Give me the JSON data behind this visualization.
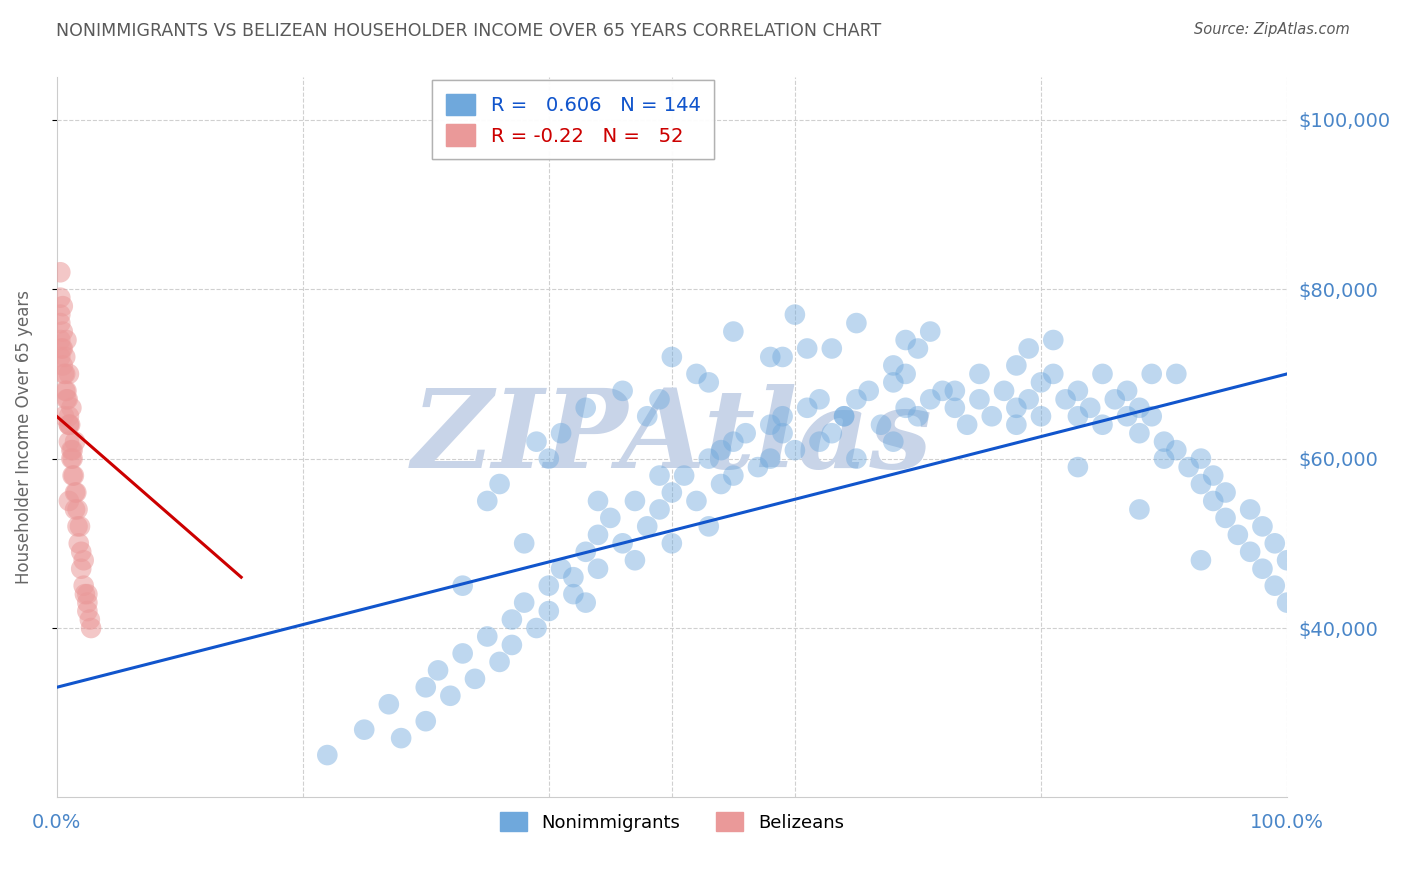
{
  "title": "NONIMMIGRANTS VS BELIZEAN HOUSEHOLDER INCOME OVER 65 YEARS CORRELATION CHART",
  "source": "Source: ZipAtlas.com",
  "ylabel": "Householder Income Over 65 years",
  "xlim": [
    0.0,
    1.0
  ],
  "ylim": [
    20000,
    105000
  ],
  "yticks": [
    40000,
    60000,
    80000,
    100000
  ],
  "ytick_labels": [
    "$40,000",
    "$60,000",
    "$80,000",
    "$100,000"
  ],
  "xtick_labels": [
    "0.0%",
    "100.0%"
  ],
  "blue_R": 0.606,
  "blue_N": 144,
  "pink_R": -0.22,
  "pink_N": 52,
  "blue_color": "#6fa8dc",
  "pink_color": "#ea9999",
  "blue_line_color": "#1155cc",
  "pink_line_color": "#cc0000",
  "axis_color": "#4a86c8",
  "title_color": "#595959",
  "source_color": "#595959",
  "watermark_color": "#c8d4e8",
  "background_color": "#ffffff",
  "grid_color": "#d0d0d0",
  "blue_trend": [
    0.0,
    33000,
    1.0,
    70000
  ],
  "pink_trend": [
    0.0,
    65000,
    0.15,
    46000
  ],
  "blue_scatter_x": [
    0.22,
    0.25,
    0.27,
    0.28,
    0.3,
    0.3,
    0.31,
    0.32,
    0.33,
    0.34,
    0.35,
    0.36,
    0.37,
    0.37,
    0.38,
    0.39,
    0.4,
    0.4,
    0.41,
    0.42,
    0.42,
    0.43,
    0.43,
    0.44,
    0.44,
    0.45,
    0.46,
    0.47,
    0.47,
    0.48,
    0.49,
    0.5,
    0.5,
    0.51,
    0.52,
    0.53,
    0.53,
    0.54,
    0.55,
    0.55,
    0.56,
    0.57,
    0.58,
    0.58,
    0.59,
    0.6,
    0.61,
    0.62,
    0.62,
    0.63,
    0.64,
    0.65,
    0.65,
    0.66,
    0.67,
    0.68,
    0.68,
    0.69,
    0.7,
    0.71,
    0.72,
    0.73,
    0.74,
    0.75,
    0.75,
    0.76,
    0.77,
    0.78,
    0.78,
    0.79,
    0.8,
    0.8,
    0.81,
    0.82,
    0.83,
    0.83,
    0.84,
    0.85,
    0.85,
    0.86,
    0.87,
    0.87,
    0.88,
    0.88,
    0.89,
    0.9,
    0.9,
    0.91,
    0.92,
    0.93,
    0.93,
    0.94,
    0.94,
    0.95,
    0.95,
    0.96,
    0.97,
    0.97,
    0.98,
    0.98,
    0.99,
    0.99,
    1.0,
    1.0,
    0.36,
    0.41,
    0.46,
    0.5,
    0.55,
    0.6,
    0.65,
    0.7,
    0.35,
    0.4,
    0.48,
    0.53,
    0.58,
    0.63,
    0.68,
    0.73,
    0.78,
    0.83,
    0.88,
    0.93,
    0.43,
    0.52,
    0.61,
    0.71,
    0.81,
    0.91,
    0.39,
    0.49,
    0.59,
    0.69,
    0.79,
    0.89,
    0.33,
    0.38,
    0.44,
    0.49,
    0.54,
    0.59,
    0.64,
    0.69
  ],
  "blue_scatter_y": [
    25000,
    28000,
    31000,
    27000,
    33000,
    29000,
    35000,
    32000,
    37000,
    34000,
    39000,
    36000,
    41000,
    38000,
    43000,
    40000,
    45000,
    42000,
    47000,
    44000,
    46000,
    49000,
    43000,
    51000,
    47000,
    53000,
    50000,
    55000,
    48000,
    52000,
    54000,
    56000,
    50000,
    58000,
    55000,
    60000,
    52000,
    57000,
    62000,
    58000,
    63000,
    59000,
    64000,
    60000,
    65000,
    61000,
    66000,
    62000,
    67000,
    63000,
    65000,
    67000,
    60000,
    68000,
    64000,
    69000,
    62000,
    70000,
    65000,
    67000,
    68000,
    66000,
    64000,
    67000,
    70000,
    65000,
    68000,
    66000,
    71000,
    67000,
    69000,
    65000,
    70000,
    67000,
    65000,
    68000,
    66000,
    70000,
    64000,
    67000,
    65000,
    68000,
    63000,
    66000,
    65000,
    62000,
    60000,
    61000,
    59000,
    57000,
    60000,
    55000,
    58000,
    53000,
    56000,
    51000,
    54000,
    49000,
    52000,
    47000,
    50000,
    45000,
    48000,
    43000,
    57000,
    63000,
    68000,
    72000,
    75000,
    77000,
    76000,
    73000,
    55000,
    60000,
    65000,
    69000,
    72000,
    73000,
    71000,
    68000,
    64000,
    59000,
    54000,
    48000,
    66000,
    70000,
    73000,
    75000,
    74000,
    70000,
    62000,
    67000,
    72000,
    74000,
    73000,
    70000,
    45000,
    50000,
    55000,
    58000,
    61000,
    63000,
    65000,
    66000
  ],
  "pink_scatter_x": [
    0.003,
    0.005,
    0.007,
    0.008,
    0.01,
    0.01,
    0.012,
    0.013,
    0.015,
    0.015,
    0.017,
    0.018,
    0.02,
    0.02,
    0.022,
    0.023,
    0.025,
    0.025,
    0.027,
    0.028,
    0.003,
    0.005,
    0.007,
    0.009,
    0.011,
    0.013,
    0.003,
    0.005,
    0.008,
    0.01,
    0.012,
    0.015,
    0.003,
    0.004,
    0.006,
    0.008,
    0.01,
    0.012,
    0.014,
    0.017,
    0.003,
    0.005,
    0.007,
    0.01,
    0.013,
    0.016,
    0.019,
    0.022,
    0.025,
    0.003,
    0.006,
    0.01
  ],
  "pink_scatter_y": [
    79000,
    75000,
    72000,
    68000,
    65000,
    62000,
    60000,
    58000,
    56000,
    54000,
    52000,
    50000,
    49000,
    47000,
    45000,
    44000,
    43000,
    42000,
    41000,
    40000,
    77000,
    73000,
    70000,
    67000,
    64000,
    61000,
    82000,
    78000,
    74000,
    70000,
    66000,
    62000,
    76000,
    73000,
    70000,
    67000,
    64000,
    61000,
    58000,
    54000,
    74000,
    71000,
    68000,
    64000,
    60000,
    56000,
    52000,
    48000,
    44000,
    72000,
    65000,
    55000
  ]
}
